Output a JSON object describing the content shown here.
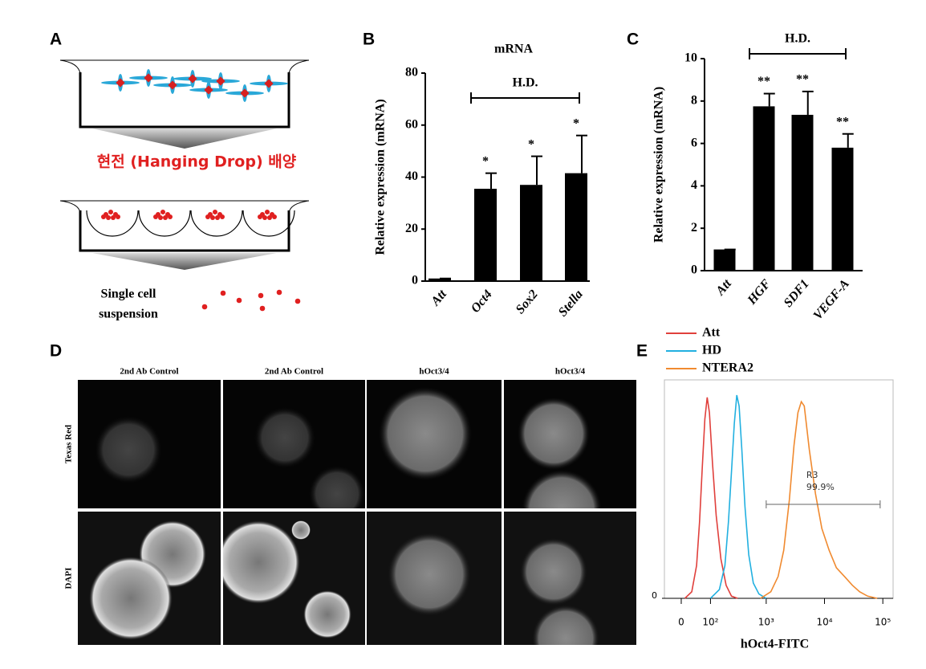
{
  "panel_labels": [
    "A",
    "B",
    "C",
    "D",
    "E"
  ],
  "diagram": {
    "culture_label": "현전 (Hanging Drop) 배양",
    "result_label": [
      "Single cell",
      "suspension"
    ]
  },
  "chart_data": [
    {
      "type": "bar",
      "title": "mRNA",
      "ylabel": "Relative expression (mRNA)",
      "categories": [
        "Att",
        "Oct4",
        "Sox2",
        "Stella"
      ],
      "values": [
        1,
        35.5,
        37,
        41.5
      ],
      "errors": [
        0,
        6,
        11,
        14.5
      ],
      "significance": [
        null,
        "*",
        "*",
        "*"
      ],
      "bracket_label": "H.D.",
      "color": "#000000",
      "ylim": [
        0,
        80
      ],
      "yticks": [
        0,
        20,
        40,
        60,
        80
      ]
    },
    {
      "type": "bar",
      "ylabel": "Relative expression (mRNA)",
      "categories": [
        "Att",
        "HGF",
        "SDF1",
        "VEGF-A"
      ],
      "values": [
        1,
        7.75,
        7.35,
        5.8
      ],
      "errors": [
        0,
        0.6,
        1.1,
        0.65
      ],
      "significance": [
        null,
        "**",
        "**",
        "**"
      ],
      "bracket_label": "H.D.",
      "color": "#000000",
      "ylim": [
        0,
        10
      ],
      "yticks": [
        0,
        2,
        4,
        6,
        8,
        10
      ]
    },
    {
      "type": "line",
      "xlabel": "hOct4-FITC",
      "xscale": "asinh",
      "series": [
        {
          "name": "Att",
          "color": "#e0403c",
          "x": [
            10,
            30,
            45,
            55,
            65,
            75,
            85,
            95,
            110,
            130,
            160,
            200,
            250,
            320
          ],
          "values": [
            0,
            3,
            15,
            35,
            60,
            82,
            92,
            85,
            62,
            38,
            18,
            6,
            1,
            0
          ]
        },
        {
          "name": "HD",
          "color": "#22b0e0",
          "x": [
            100,
            150,
            190,
            220,
            250,
            280,
            310,
            340,
            380,
            430,
            500,
            600,
            750,
            1000
          ],
          "values": [
            0,
            4,
            15,
            35,
            58,
            80,
            93,
            88,
            68,
            42,
            20,
            7,
            2,
            0
          ]
        },
        {
          "name": "NTERA2",
          "color": "#f08a30",
          "x": [
            800,
            1200,
            1600,
            2000,
            2500,
            3000,
            3500,
            4000,
            4500,
            5500,
            7000,
            9000,
            12000,
            16000,
            22000,
            30000,
            40000,
            55000,
            80000
          ],
          "values": [
            0,
            3,
            10,
            22,
            45,
            70,
            85,
            90,
            88,
            68,
            48,
            32,
            22,
            14,
            10,
            6,
            3,
            1,
            0
          ]
        }
      ],
      "xlim": [
        -50,
        150000
      ],
      "xticks": [
        0,
        {
          "value": 100,
          "label": "10²"
        },
        {
          "value": 1000,
          "label": "10³"
        },
        {
          "value": 10000,
          "label": "10⁴"
        },
        {
          "value": 100000,
          "label": "10⁵"
        }
      ],
      "ylim": [
        0,
        100
      ],
      "yticks": [
        0
      ],
      "gate": {
        "name": "R3",
        "value": 99.9,
        "value_label": "99.9%",
        "xrange": [
          1000,
          90000
        ]
      }
    }
  ],
  "microscopy": {
    "columns": [
      "2nd Ab Control",
      "2nd Ab Control",
      "hOct3/4",
      "hOct3/4"
    ],
    "rows": [
      "Texas Red",
      "DAPI"
    ]
  }
}
